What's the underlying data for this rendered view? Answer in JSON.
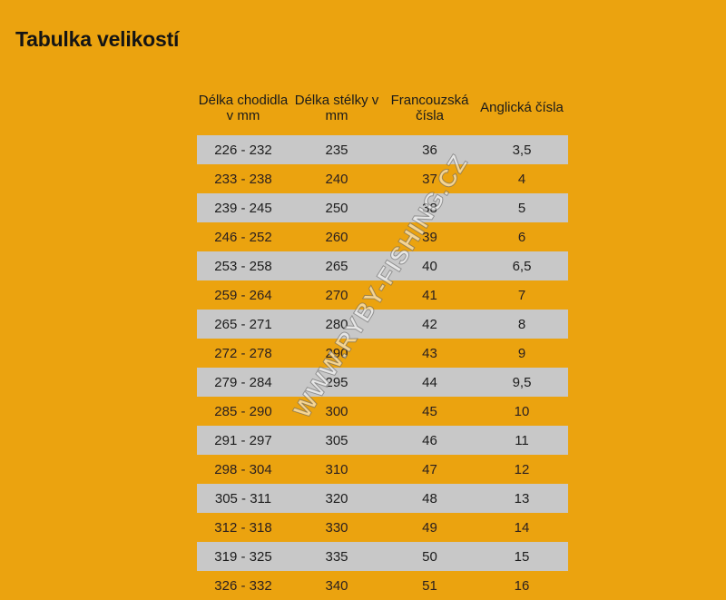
{
  "title": "Tabulka velikostí",
  "headers": [
    "Délka chodidla v mm",
    "Délka stélky v mm",
    "Francouzská čísla",
    "Anglická čísla"
  ],
  "rows": [
    [
      "226 - 232",
      "235",
      "36",
      "3,5"
    ],
    [
      "233 - 238",
      "240",
      "37",
      "4"
    ],
    [
      "239 - 245",
      "250",
      "38",
      "5"
    ],
    [
      "246 - 252",
      "260",
      "39",
      "6"
    ],
    [
      "253 - 258",
      "265",
      "40",
      "6,5"
    ],
    [
      "259 - 264",
      "270",
      "41",
      "7"
    ],
    [
      "265 - 271",
      "280",
      "42",
      "8"
    ],
    [
      "272 - 278",
      "290",
      "43",
      "9"
    ],
    [
      "279 - 284",
      "295",
      "44",
      "9,5"
    ],
    [
      "285 - 290",
      "300",
      "45",
      "10"
    ],
    [
      "291 - 297",
      "305",
      "46",
      "11"
    ],
    [
      "298 - 304",
      "310",
      "47",
      "12"
    ],
    [
      "305 - 311",
      "320",
      "48",
      "13"
    ],
    [
      "312 - 318",
      "330",
      "49",
      "14"
    ],
    [
      "319 - 325",
      "335",
      "50",
      "15"
    ],
    [
      "326 - 332",
      "340",
      "51",
      "16"
    ]
  ],
  "watermark": "WWW.RYBY-FISHING.CZ",
  "colors": {
    "background": "#eba30f",
    "row_shade": "#c8c8c8"
  }
}
